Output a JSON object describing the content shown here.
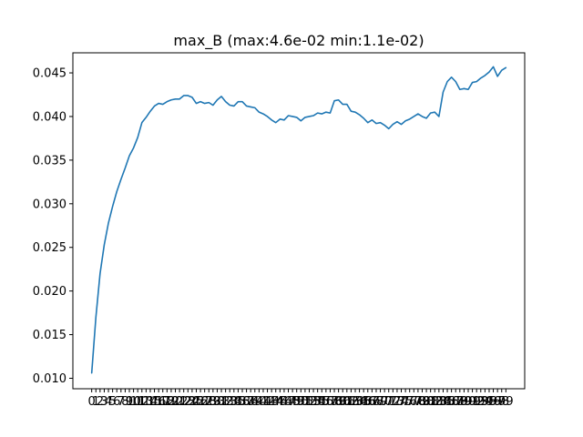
{
  "colors": {
    "series": "#1f77b4",
    "axes": "#000000",
    "background": "#ffffff"
  },
  "chart_data": {
    "type": "line",
    "title": "max_B (max:4.6e-02 min:1.1e-02)",
    "xlabel": "",
    "ylabel": "",
    "xlim": [
      -4.5,
      103.5
    ],
    "ylim": [
      0.0088,
      0.0473
    ],
    "yticks": [
      0.01,
      0.015,
      0.02,
      0.025,
      0.03,
      0.035,
      0.04,
      0.045
    ],
    "ytick_labels": [
      "0.010",
      "0.015",
      "0.020",
      "0.025",
      "0.030",
      "0.035",
      "0.040",
      "0.045"
    ],
    "grid": false,
    "legend": "none",
    "x": [
      0,
      1,
      2,
      3,
      4,
      5,
      6,
      7,
      8,
      9,
      10,
      11,
      12,
      13,
      14,
      15,
      16,
      17,
      18,
      19,
      20,
      21,
      22,
      23,
      24,
      25,
      26,
      27,
      28,
      29,
      30,
      31,
      32,
      33,
      34,
      35,
      36,
      37,
      38,
      39,
      40,
      41,
      42,
      43,
      44,
      45,
      46,
      47,
      48,
      49,
      50,
      51,
      52,
      53,
      54,
      55,
      56,
      57,
      58,
      59,
      60,
      61,
      62,
      63,
      64,
      65,
      66,
      67,
      68,
      69,
      70,
      71,
      72,
      73,
      74,
      75,
      76,
      77,
      78,
      79,
      80,
      81,
      82,
      83,
      84,
      85,
      86,
      87,
      88,
      89,
      90,
      91,
      92,
      93,
      94,
      95,
      96,
      97,
      98,
      99
    ],
    "series": [
      {
        "values": [
          0.0106,
          0.017,
          0.022,
          0.0253,
          0.0278,
          0.0297,
          0.0314,
          0.0328,
          0.0341,
          0.0355,
          0.0364,
          0.0376,
          0.0393,
          0.0399,
          0.0406,
          0.0412,
          0.0415,
          0.0414,
          0.0417,
          0.0419,
          0.042,
          0.042,
          0.0424,
          0.0424,
          0.0422,
          0.0415,
          0.0417,
          0.0415,
          0.0416,
          0.0413,
          0.0419,
          0.0423,
          0.0417,
          0.0413,
          0.0412,
          0.0417,
          0.0417,
          0.0412,
          0.0411,
          0.041,
          0.0405,
          0.0403,
          0.04,
          0.0396,
          0.0393,
          0.0397,
          0.0396,
          0.0401,
          0.04,
          0.0399,
          0.0395,
          0.0399,
          0.04,
          0.0401,
          0.0404,
          0.0403,
          0.0405,
          0.0404,
          0.0418,
          0.0419,
          0.0414,
          0.0414,
          0.0406,
          0.0405,
          0.0402,
          0.0398,
          0.0393,
          0.0396,
          0.0392,
          0.0393,
          0.039,
          0.0386,
          0.0391,
          0.0394,
          0.0391,
          0.0395,
          0.0397,
          0.04,
          0.0403,
          0.04,
          0.0398,
          0.0404,
          0.0405,
          0.04,
          0.0428,
          0.044,
          0.0445,
          0.044,
          0.0431,
          0.0432,
          0.0431,
          0.0439,
          0.044,
          0.0444,
          0.0447,
          0.0451,
          0.0457,
          0.0446,
          0.0453,
          0.0456
        ]
      }
    ]
  }
}
